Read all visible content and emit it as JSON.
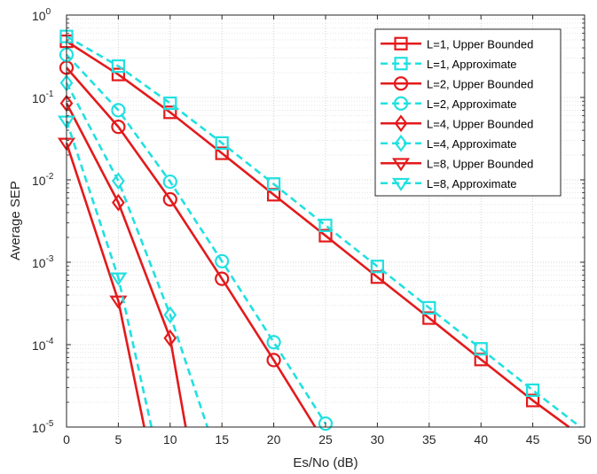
{
  "chart_data": {
    "type": "line",
    "xlabel": "Es/No (dB)",
    "ylabel": "Average SEP",
    "xlim": [
      0,
      50
    ],
    "ylim": [
      1e-05,
      1
    ],
    "y_scale": "log",
    "grid": true,
    "legend_position": "top-right",
    "x_ticks": [
      "0",
      "5",
      "10",
      "15",
      "20",
      "25",
      "30",
      "35",
      "40",
      "45",
      "50"
    ],
    "y_ticks": [
      {
        "base": "10",
        "exp": "0"
      },
      {
        "base": "10",
        "exp": "-1"
      },
      {
        "base": "10",
        "exp": "-2"
      },
      {
        "base": "10",
        "exp": "-3"
      },
      {
        "base": "10",
        "exp": "-4"
      },
      {
        "base": "10",
        "exp": "-5"
      }
    ],
    "series": [
      {
        "name": "L=1, Upper Bounded",
        "color": "#e31a1c",
        "dash": "solid",
        "marker": "square",
        "x": [
          0,
          5,
          10,
          15,
          20,
          25,
          30,
          35,
          40,
          45,
          48.5
        ],
        "y": [
          0.48,
          0.19,
          0.066,
          0.021,
          0.0066,
          0.0021,
          0.00066,
          0.00021,
          6.6e-05,
          2.1e-05,
          1e-05
        ]
      },
      {
        "name": "L=1, Approximate",
        "color": "#22e0e0",
        "dash": "dashed",
        "marker": "square",
        "x": [
          0,
          5,
          10,
          15,
          20,
          25,
          30,
          35,
          40,
          45,
          49.6
        ],
        "y": [
          0.55,
          0.24,
          0.085,
          0.028,
          0.0089,
          0.0028,
          0.00089,
          0.00028,
          8.9e-05,
          2.8e-05,
          1e-05
        ]
      },
      {
        "name": "L=2, Upper Bounded",
        "color": "#e31a1c",
        "dash": "solid",
        "marker": "circle",
        "x": [
          0,
          5,
          10,
          15,
          20,
          24
        ],
        "y": [
          0.23,
          0.044,
          0.0058,
          0.00063,
          6.5e-05,
          1e-05
        ]
      },
      {
        "name": "L=2, Approximate",
        "color": "#22e0e0",
        "dash": "dashed",
        "marker": "circle",
        "x": [
          0,
          5,
          10,
          15,
          20,
          25
        ],
        "y": [
          0.33,
          0.07,
          0.0095,
          0.00103,
          0.000107,
          1.1e-05
        ]
      },
      {
        "name": "L=4, Upper Bounded",
        "color": "#e31a1c",
        "dash": "solid",
        "marker": "diamond",
        "x": [
          0,
          5,
          10,
          11.5
        ],
        "y": [
          0.085,
          0.0053,
          0.00012,
          1e-05
        ]
      },
      {
        "name": "L=4, Approximate",
        "color": "#22e0e0",
        "dash": "dashed",
        "marker": "diamond",
        "x": [
          0,
          5,
          10,
          13.6
        ],
        "y": [
          0.15,
          0.0097,
          0.00023,
          1e-05
        ]
      },
      {
        "name": "L=8, Upper Bounded",
        "color": "#e31a1c",
        "dash": "solid",
        "marker": "triangle-down",
        "x": [
          0,
          5,
          7.5
        ],
        "y": [
          0.028,
          0.00034,
          1e-05
        ]
      },
      {
        "name": "L=8, Approximate",
        "color": "#22e0e0",
        "dash": "dashed",
        "marker": "triangle-down",
        "x": [
          0,
          5,
          8.2
        ],
        "y": [
          0.052,
          0.00065,
          1e-05
        ]
      }
    ],
    "marker_points": [
      [
        0,
        1,
        2,
        3,
        4,
        5,
        6,
        7,
        8,
        9
      ],
      [
        0,
        1,
        2,
        3,
        4,
        5,
        6,
        7,
        8,
        9
      ],
      [
        0,
        1,
        2,
        3,
        4
      ],
      [
        0,
        1,
        2,
        3,
        4,
        5
      ],
      [
        0,
        1,
        2
      ],
      [
        0,
        1,
        2
      ],
      [
        0,
        1
      ],
      [
        0,
        1
      ]
    ]
  }
}
